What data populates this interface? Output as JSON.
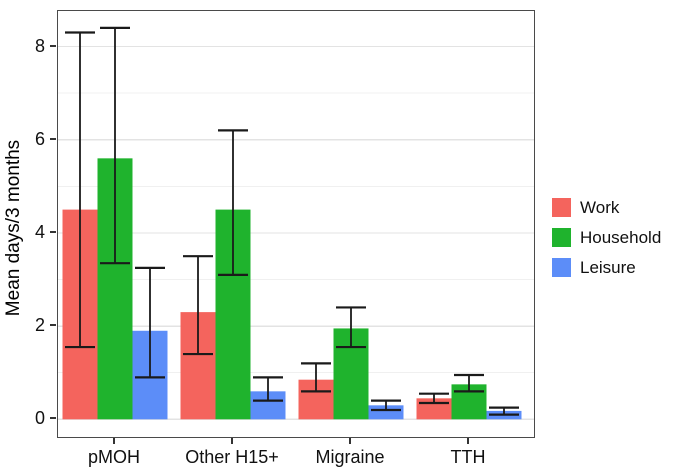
{
  "chart_data": {
    "type": "bar",
    "title": "",
    "xlabel": "",
    "ylabel": "Mean days/3 months",
    "categories": [
      "pMOH",
      "Other H15+",
      "Migraine",
      "TTH"
    ],
    "series": [
      {
        "name": "Work",
        "color": "#F4645D",
        "values": [
          4.5,
          2.3,
          0.85,
          0.45
        ],
        "error_low": [
          1.55,
          1.4,
          0.6,
          0.35
        ],
        "error_high": [
          8.3,
          3.5,
          1.2,
          0.55
        ]
      },
      {
        "name": "Household",
        "color": "#1FB32D",
        "values": [
          5.6,
          4.5,
          1.95,
          0.75
        ],
        "error_low": [
          3.35,
          3.1,
          1.55,
          0.6
        ],
        "error_high": [
          8.4,
          6.2,
          2.4,
          0.95
        ]
      },
      {
        "name": "Leisure",
        "color": "#5C8DF8",
        "values": [
          1.9,
          0.6,
          0.3,
          0.18
        ],
        "error_low": [
          0.9,
          0.4,
          0.2,
          0.1
        ],
        "error_high": [
          3.25,
          0.9,
          0.4,
          0.25
        ]
      }
    ],
    "yticks": [
      0,
      2,
      4,
      6,
      8
    ],
    "ylim": [
      0,
      8.75
    ],
    "grid": "horizontal light-gray gridlines at every integer, majors at even ticks",
    "legend_position": "right-middle",
    "error_bars": true,
    "colors": {
      "panel_border": "#4a4a4a",
      "error_bar": "#1a1a1a",
      "grid_major": "#e3e3e3",
      "grid_minor": "#f0f0f0",
      "background": "#ffffff"
    }
  }
}
